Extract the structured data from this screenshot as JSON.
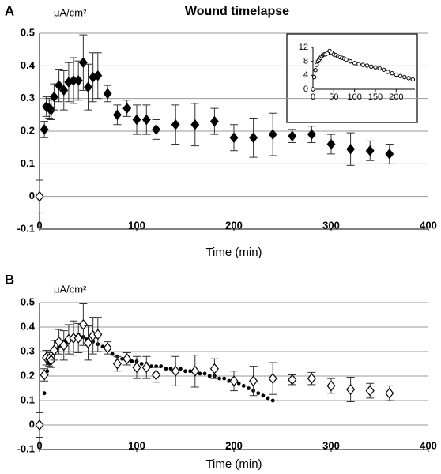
{
  "chart_data": [
    {
      "type": "scatter",
      "title": "Wound timelapse",
      "panel_label": "A",
      "y_label": "μA/cm²",
      "x_label": "Time (min)",
      "xlim": [
        0,
        400
      ],
      "ylim": [
        -0.1,
        0.5
      ],
      "xticks": [
        0,
        100,
        200,
        300,
        400
      ],
      "yticks": [
        -0.1,
        0,
        0.1,
        0.2,
        0.3,
        0.4,
        0.5
      ],
      "grid": true,
      "series": [
        {
          "color": "#000000",
          "marker": "diamond-filled",
          "x": [
            5,
            7,
            10,
            12,
            15,
            20,
            25,
            30,
            35,
            40,
            45,
            50,
            55,
            60,
            70,
            80,
            90,
            100,
            110,
            120,
            140,
            160,
            180,
            200,
            220,
            240,
            260,
            280,
            300,
            320,
            340,
            360
          ],
          "values": [
            0.205,
            0.275,
            0.27,
            0.265,
            0.305,
            0.34,
            0.325,
            0.35,
            0.355,
            0.355,
            0.41,
            0.335,
            0.365,
            0.37,
            0.315,
            0.25,
            0.27,
            0.235,
            0.235,
            0.205,
            0.22,
            0.22,
            0.23,
            0.18,
            0.18,
            0.19,
            0.185,
            0.19,
            0.16,
            0.145,
            0.14,
            0.13
          ],
          "errors": [
            0.025,
            0.03,
            0.03,
            0.03,
            0.04,
            0.05,
            0.06,
            0.06,
            0.07,
            0.06,
            0.085,
            0.07,
            0.075,
            0.07,
            0.025,
            0.03,
            0.025,
            0.045,
            0.045,
            0.03,
            0.06,
            0.065,
            0.04,
            0.04,
            0.06,
            0.065,
            0.02,
            0.025,
            0.03,
            0.05,
            0.03,
            0.03
          ]
        },
        {
          "color": "#000000",
          "marker": "diamond-open",
          "x": [
            0
          ],
          "values": [
            0
          ],
          "errors": [
            0.05
          ]
        }
      ]
    },
    {
      "type": "scatter",
      "panel_label": "B",
      "y_label": "μA/cm²",
      "x_label": "Time (min)",
      "xlim": [
        0,
        400
      ],
      "ylim": [
        -0.1,
        0.5
      ],
      "xticks": [
        0,
        100,
        200,
        300,
        400
      ],
      "yticks": [
        -0.1,
        0,
        0.1,
        0.2,
        0.3,
        0.4,
        0.5
      ],
      "grid": true,
      "series": [
        {
          "color": "#000000",
          "marker": "dot",
          "x": [
            5,
            8,
            10,
            12,
            15,
            18,
            20,
            22,
            25,
            28,
            30,
            32,
            35,
            38,
            40,
            42,
            45,
            48,
            50,
            55,
            60,
            65,
            70,
            75,
            80,
            85,
            90,
            95,
            100,
            105,
            110,
            115,
            120,
            125,
            130,
            135,
            140,
            145,
            150,
            155,
            160,
            165,
            170,
            175,
            180,
            185,
            190,
            195,
            200,
            205,
            210,
            215,
            220,
            225,
            230,
            235,
            240
          ],
          "values": [
            0.13,
            0.22,
            0.25,
            0.27,
            0.29,
            0.31,
            0.32,
            0.33,
            0.34,
            0.34,
            0.35,
            0.35,
            0.36,
            0.36,
            0.37,
            0.36,
            0.36,
            0.35,
            0.35,
            0.34,
            0.33,
            0.32,
            0.31,
            0.29,
            0.28,
            0.27,
            0.27,
            0.26,
            0.26,
            0.25,
            0.25,
            0.24,
            0.24,
            0.24,
            0.23,
            0.23,
            0.23,
            0.23,
            0.22,
            0.22,
            0.22,
            0.21,
            0.21,
            0.2,
            0.2,
            0.19,
            0.19,
            0.18,
            0.17,
            0.17,
            0.16,
            0.15,
            0.14,
            0.13,
            0.12,
            0.11,
            0.1
          ]
        },
        {
          "color": "#000000",
          "marker": "diamond-open",
          "x": [
            0,
            5,
            7,
            10,
            12,
            15,
            20,
            25,
            30,
            35,
            40,
            45,
            50,
            55,
            60,
            70,
            80,
            90,
            100,
            110,
            120,
            140,
            160,
            180,
            200,
            220,
            240,
            260,
            280,
            300,
            320,
            340,
            360
          ],
          "values": [
            0,
            0.205,
            0.275,
            0.27,
            0.265,
            0.305,
            0.34,
            0.325,
            0.35,
            0.355,
            0.355,
            0.41,
            0.335,
            0.365,
            0.37,
            0.315,
            0.25,
            0.27,
            0.235,
            0.235,
            0.205,
            0.22,
            0.22,
            0.23,
            0.18,
            0.18,
            0.19,
            0.185,
            0.19,
            0.16,
            0.145,
            0.14,
            0.13
          ],
          "errors": [
            0.05,
            0.025,
            0.03,
            0.03,
            0.03,
            0.04,
            0.05,
            0.06,
            0.06,
            0.07,
            0.06,
            0.085,
            0.07,
            0.075,
            0.07,
            0.025,
            0.03,
            0.025,
            0.045,
            0.045,
            0.03,
            0.06,
            0.065,
            0.04,
            0.04,
            0.06,
            0.065,
            0.02,
            0.025,
            0.03,
            0.05,
            0.03,
            0.03
          ]
        }
      ]
    },
    {
      "type": "scatter",
      "xlim": [
        0,
        245
      ],
      "ylim": [
        0,
        12
      ],
      "xticks": [
        0,
        50,
        100,
        150,
        200
      ],
      "yticks": [
        0,
        4,
        8,
        12
      ],
      "grid": false,
      "series": [
        {
          "color": "#000000",
          "marker": "circle-open",
          "x": [
            0,
            3,
            6,
            9,
            12,
            15,
            18,
            21,
            24,
            27,
            30,
            35,
            40,
            45,
            50,
            55,
            60,
            65,
            70,
            75,
            80,
            90,
            100,
            110,
            120,
            130,
            140,
            150,
            160,
            170,
            180,
            190,
            200,
            210,
            220,
            230,
            240
          ],
          "values": [
            0,
            3.5,
            5.5,
            7,
            8,
            8.5,
            9,
            9.5,
            9.8,
            10,
            10,
            10.3,
            11,
            10.5,
            10,
            9.8,
            9.5,
            9.2,
            9,
            8.8,
            8.5,
            8,
            7.5,
            7.2,
            7,
            6.8,
            6.5,
            6.3,
            6,
            5.6,
            5,
            4.6,
            4.2,
            3.8,
            3.5,
            3.2,
            2.8
          ]
        }
      ]
    }
  ]
}
